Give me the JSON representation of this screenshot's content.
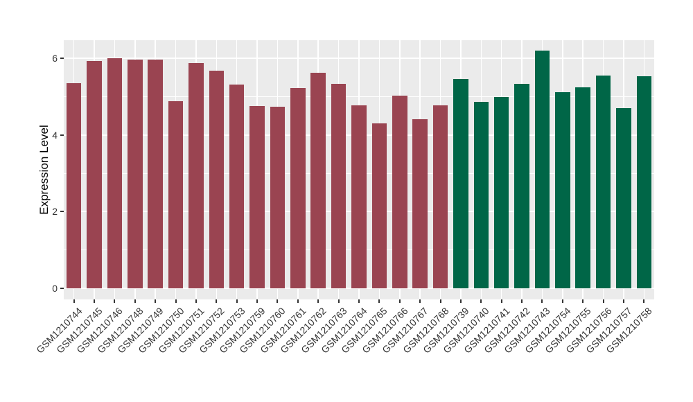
{
  "chart_data": {
    "type": "bar",
    "title": "",
    "xlabel": "",
    "ylabel": "Expression Level",
    "categories": [
      "GSM1210744",
      "GSM1210745",
      "GSM1210746",
      "GSM1210748",
      "GSM1210749",
      "GSM1210750",
      "GSM1210751",
      "GSM1210752",
      "GSM1210753",
      "GSM1210759",
      "GSM1210760",
      "GSM1210761",
      "GSM1210762",
      "GSM1210763",
      "GSM1210764",
      "GSM1210765",
      "GSM1210766",
      "GSM1210767",
      "GSM1210768",
      "GSM1210739",
      "GSM1210740",
      "GSM1210741",
      "GSM1210742",
      "GSM1210743",
      "GSM1210754",
      "GSM1210755",
      "GSM1210756",
      "GSM1210757",
      "GSM1210758"
    ],
    "values": [
      5.36,
      5.94,
      6.01,
      5.96,
      5.96,
      4.89,
      5.87,
      5.68,
      5.31,
      4.76,
      4.73,
      5.22,
      5.63,
      5.33,
      4.78,
      4.3,
      5.03,
      4.41,
      4.78,
      5.46,
      4.87,
      5.0,
      5.34,
      6.2,
      5.11,
      5.25,
      5.56,
      4.71,
      5.54
    ],
    "groups": [
      "g1",
      "g1",
      "g1",
      "g1",
      "g1",
      "g1",
      "g1",
      "g1",
      "g1",
      "g1",
      "g1",
      "g1",
      "g1",
      "g1",
      "g1",
      "g1",
      "g1",
      "g1",
      "g1",
      "g2",
      "g2",
      "g2",
      "g2",
      "g2",
      "g2",
      "g2",
      "g2",
      "g2",
      "g2"
    ],
    "group_colors": {
      "g1": "#9A4451",
      "g2": "#006647"
    },
    "ylim": [
      -0.3,
      6.5
    ],
    "yticks": [
      0,
      2,
      4,
      6
    ],
    "ytick_labels": [
      "0",
      "2",
      "4",
      "6"
    ],
    "minor_yticks": [
      1,
      3,
      5
    ],
    "grid": "on",
    "legend": "none",
    "panel_bg": "#EBEBEB",
    "grid_color": "#FFFFFF",
    "tick_label_color": "#333333",
    "axis_title_color": "#000000"
  }
}
